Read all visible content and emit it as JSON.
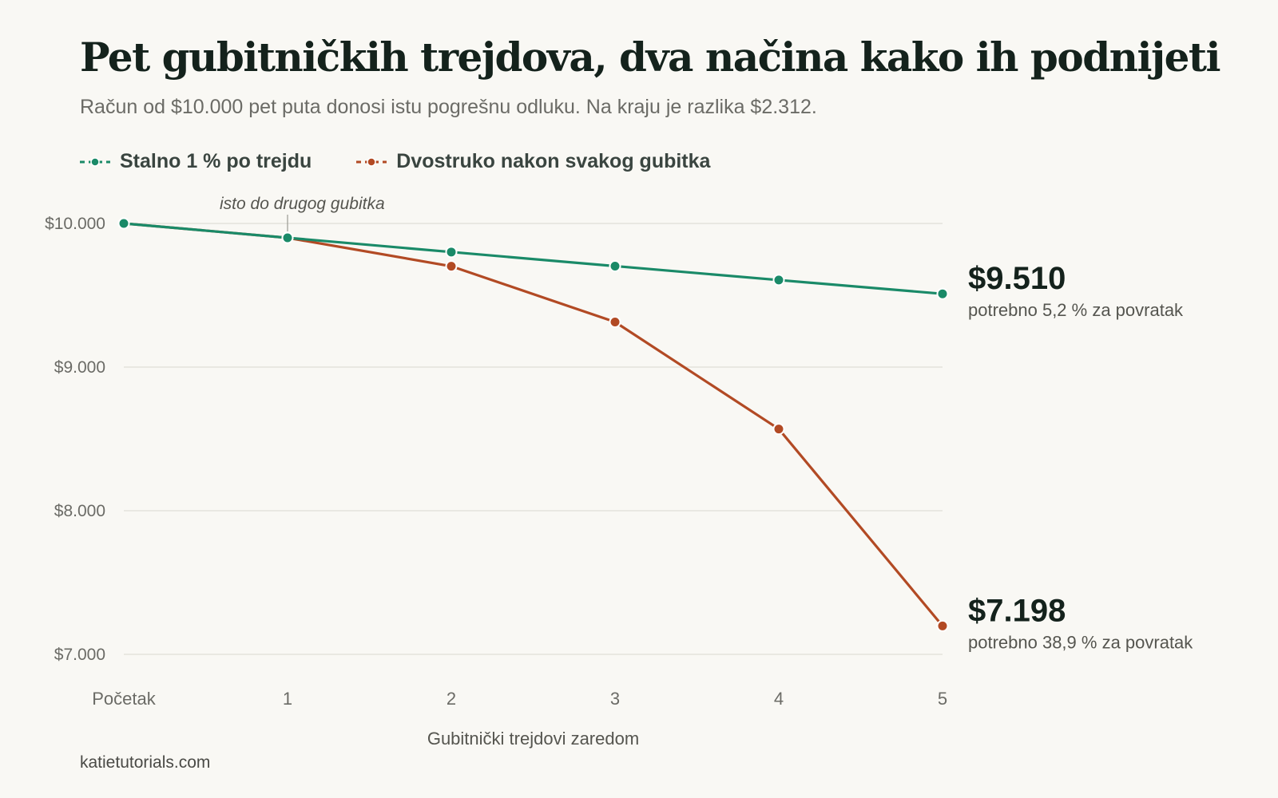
{
  "title": "Pet gubitničkih trejdova, dva načina kako ih podnijeti",
  "subtitle": "Račun od $10.000 pet puta donosi istu pogrešnu odluku. Na kraju je razlika $2.312.",
  "source": "katietutorials.com",
  "colors": {
    "background": "#f9f8f4",
    "constant": "#1a8a68",
    "doubling": "#b24a24",
    "grid": "#e4e2dc",
    "axis_text": "#6b6b66"
  },
  "legend": [
    {
      "label": "Stalno 1 % po trejdu",
      "color": "#1a8a68"
    },
    {
      "label": "Dvostruko nakon svakog gubitka",
      "color": "#b24a24"
    }
  ],
  "chart_data": {
    "type": "line",
    "x": [
      "Početak",
      "1",
      "2",
      "3",
      "4",
      "5"
    ],
    "xlabel": "Gubitnički trejdovi zaredom",
    "ylabel": "",
    "ylim": [
      7000,
      10000
    ],
    "yticks": [
      10000,
      9000,
      8000,
      7000
    ],
    "ytick_labels": [
      "$10.000",
      "$9.000",
      "$8.000",
      "$7.000"
    ],
    "grid": true,
    "legend_position": "top-left",
    "series": [
      {
        "name": "Stalno 1 % po trejdu",
        "color": "#1a8a68",
        "values": [
          10000,
          9900,
          9801,
          9703,
          9606,
          9510
        ],
        "end_label": "$9.510",
        "end_note": "potrebno 5,2 % za povratak"
      },
      {
        "name": "Dvostruko nakon svakog gubitka",
        "color": "#b24a24",
        "values": [
          10000,
          9900,
          9702,
          9314,
          8569,
          7198
        ],
        "end_label": "$7.198",
        "end_note": "potrebno 38,9 % za povratak"
      }
    ],
    "annotations": [
      {
        "text": "isto do drugog gubitka",
        "x_index": 1
      }
    ]
  }
}
